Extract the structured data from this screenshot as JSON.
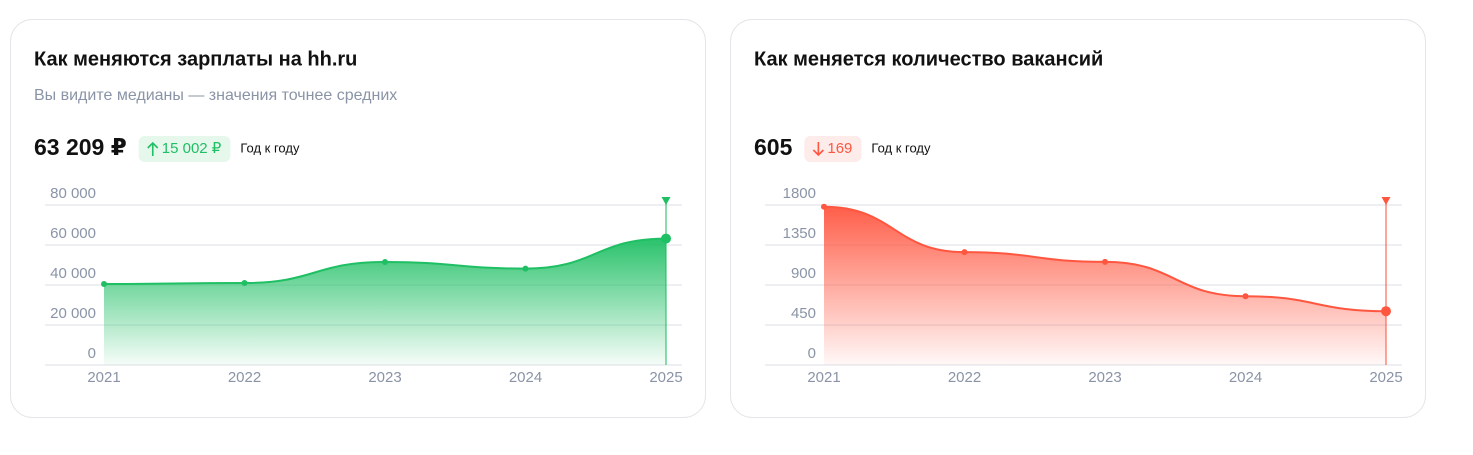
{
  "chart_data": [
    {
      "type": "area",
      "title": "Как меняются зарплаты на hh.ru",
      "subtitle": "Вы видите медианы — значения точнее средних",
      "value": "63 209 ₽",
      "change": "15 002 ₽",
      "period": "Год к году",
      "trend": "up",
      "color": "#1fbf64",
      "categories": [
        "2021",
        "2022",
        "2023",
        "2024",
        "2025"
      ],
      "values": [
        40500,
        41000,
        51500,
        48207,
        63209
      ],
      "ylim": [
        0,
        80000
      ],
      "yticks": [
        0,
        {
          "value": 20000,
          "label": "20 000"
        },
        {
          "value": 40000,
          "label": "40 000"
        },
        {
          "value": 60000,
          "label": "60 000"
        },
        {
          "value": 80000,
          "label": "80 000"
        }
      ],
      "grid": true
    },
    {
      "type": "area",
      "title": "Как меняется количество вакансий",
      "value": "605",
      "change": "169",
      "period": "Год к году",
      "trend": "down",
      "color": "#ff5640",
      "categories": [
        "2021",
        "2022",
        "2023",
        "2024",
        "2025"
      ],
      "values": [
        1780,
        1270,
        1160,
        774,
        605
      ],
      "ylim": [
        0,
        1800
      ],
      "yticks": [
        0,
        450,
        900,
        1350,
        1800
      ],
      "grid": true
    }
  ]
}
